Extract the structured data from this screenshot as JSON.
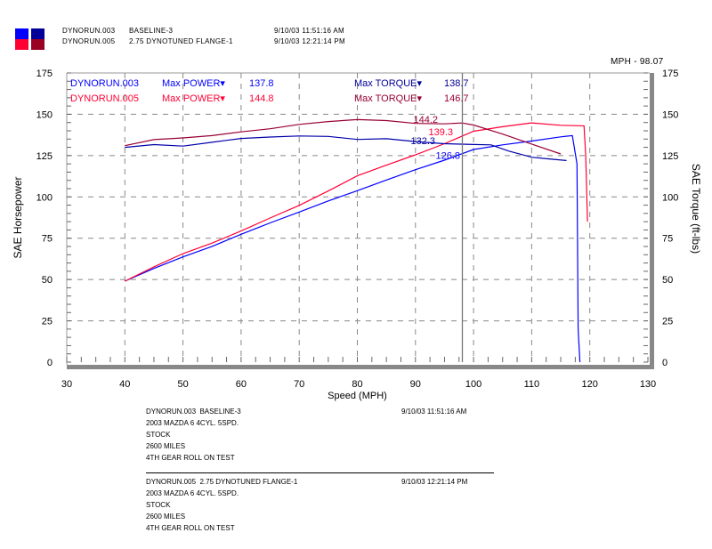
{
  "header": {
    "runs": [
      {
        "id": "DYNORUN.003",
        "name": "BASELINE-3",
        "timestamp": "9/10/03 11:51:16 AM"
      },
      {
        "id": "DYNORUN.005",
        "name": "2.75 DYNOTUNED FLANGE-1",
        "timestamp": "9/10/03 12:21:14 PM"
      }
    ],
    "cursor_readout": "MPH - 98.07"
  },
  "legend_icon_colors": [
    "#0000ff",
    "#000099",
    "#ff0033",
    "#990022"
  ],
  "chart_data": {
    "type": "line",
    "xlabel": "Speed (MPH)",
    "ylabel": "SAE Horsepower",
    "y2label": "SAE Torque (ft-lbs)",
    "xlim": [
      30,
      130
    ],
    "ylim": [
      0,
      175
    ],
    "y2lim": [
      0,
      175
    ],
    "xticks": [
      30,
      40,
      50,
      60,
      70,
      80,
      90,
      100,
      110,
      120,
      130
    ],
    "yticks": [
      0,
      25,
      50,
      75,
      100,
      125,
      150,
      175
    ],
    "grid": true,
    "cursor_x": 98.07,
    "summary": [
      {
        "run": "DYNORUN.003",
        "power_label": "Max POWER",
        "power": "137.8",
        "torque_label": "Max TORQUE",
        "torque": "138.7",
        "color": "#0000ff",
        "torque_color": "#000099"
      },
      {
        "run": "DYNORUN.005",
        "power_label": "Max POWER",
        "power": "144.8",
        "torque_label": "Max TORQUE",
        "torque": "146.7",
        "color": "#ff0033",
        "torque_color": "#990033"
      }
    ],
    "cursor_values": [
      {
        "value": "144.2",
        "color": "#990033",
        "at": 146
      },
      {
        "value": "139.3",
        "color": "#ff0033",
        "at": 138.5
      },
      {
        "value": "132.3",
        "color": "#000099",
        "at": 133
      },
      {
        "value": "126.8",
        "color": "#0000ff",
        "at": 124
      }
    ],
    "series": [
      {
        "run": "DYNORUN.003",
        "quantity": "power",
        "color": "#0000ff",
        "x": [
          40,
          45,
          50,
          55,
          60,
          65,
          70,
          75,
          80,
          85,
          90,
          95,
          100,
          105,
          110,
          115,
          117,
          117.8,
          118,
          118.3
        ],
        "y": [
          49,
          56,
          63,
          70,
          78,
          85,
          91,
          97,
          103,
          110,
          117,
          123,
          129,
          131,
          133,
          136,
          137.5,
          120,
          20,
          0
        ]
      },
      {
        "run": "DYNORUN.005",
        "quantity": "power",
        "color": "#ff0033",
        "x": [
          40,
          45,
          50,
          55,
          60,
          65,
          70,
          75,
          80,
          85,
          90,
          95,
          100,
          105,
          110,
          115,
          119,
          119.3,
          119.6
        ],
        "y": [
          49,
          57,
          65,
          72,
          80,
          88,
          95,
          103,
          112,
          119,
          126,
          133,
          140,
          142,
          144,
          143,
          143,
          125,
          85
        ]
      },
      {
        "run": "DYNORUN.003",
        "quantity": "torque",
        "color": "#0000aa",
        "x": [
          40,
          45,
          50,
          55,
          60,
          65,
          70,
          75,
          80,
          85,
          90,
          95,
          100,
          103,
          106,
          110,
          113,
          116
        ],
        "y": [
          130,
          131,
          130,
          133,
          136,
          137,
          137,
          136,
          134,
          135,
          134,
          133,
          132,
          131,
          127,
          124,
          123,
          122
        ]
      },
      {
        "run": "DYNORUN.005",
        "quantity": "torque",
        "color": "#990033",
        "x": [
          40,
          45,
          50,
          55,
          60,
          65,
          70,
          75,
          80,
          85,
          90,
          95,
          98,
          100,
          105,
          110,
          115
        ],
        "y": [
          131,
          134,
          135,
          137,
          140,
          142,
          144,
          145,
          146,
          146,
          145,
          145,
          145,
          143,
          138,
          132,
          126
        ]
      }
    ]
  },
  "notes": [
    {
      "title_id": "DYNORUN.003",
      "title_name": "BASELINE-3",
      "timestamp": "9/10/03 11:51:16 AM",
      "lines": [
        "2003 MAZDA 6 4CYL. 5SPD.",
        "STOCK",
        "2600 MILES",
        "4TH GEAR ROLL ON TEST"
      ]
    },
    {
      "title_id": "DYNORUN.005",
      "title_name": "2.75 DYNOTUNED FLANGE-1",
      "timestamp": "9/10/03 12:21:14 PM",
      "lines": [
        "2003 MAZDA 6 4CYL. 5SPD.",
        "STOCK",
        "2600 MILES",
        "4TH GEAR ROLL ON TEST"
      ]
    }
  ]
}
